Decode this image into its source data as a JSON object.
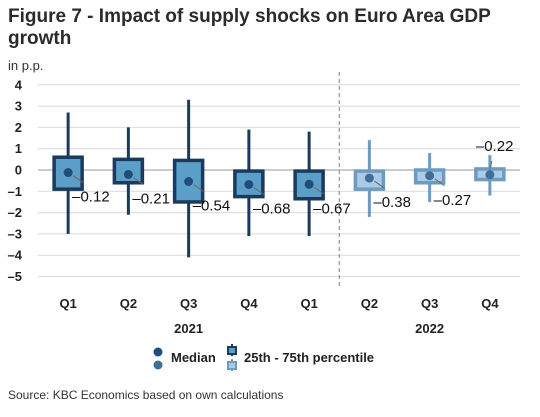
{
  "title": "Figure 7 - Impact of supply shocks on Euro Area GDP growth",
  "unit_label": "in p.p.",
  "source": "Source: KBC Economics based on own calculations",
  "colors": {
    "dark_line": "#1b3a5c",
    "dark_fill": "#5b9fc8",
    "light_line": "#6f9bc0",
    "light_fill": "#a8cbe6",
    "median_dark": "#1f4e79",
    "median_light": "#3f6f99",
    "grid": "#d9d9d9",
    "divider": "#808080"
  },
  "chart_data": {
    "type": "boxplot",
    "title": "Figure 7 - Impact of supply shocks on Euro Area GDP growth",
    "ylabel": "in p.p.",
    "ylim": [
      -5.4,
      4.3
    ],
    "yticks": [
      4,
      3,
      2,
      1,
      0,
      -1,
      -2,
      -3,
      -4,
      -5
    ],
    "grid": true,
    "legend": {
      "position": "bottom",
      "entries": [
        "Median",
        "25th - 75th percentile"
      ]
    },
    "categories": [
      "Q1",
      "Q2",
      "Q3",
      "Q4",
      "Q1",
      "Q2",
      "Q3",
      "Q4"
    ],
    "years": [
      {
        "label": "2021",
        "start": 0,
        "end": 4
      },
      {
        "label": "2022",
        "start": 5,
        "end": 7
      }
    ],
    "divider_after": 4,
    "series": [
      {
        "period": "2021 Q1",
        "median": -0.12,
        "q1": -0.9,
        "q3": 0.6,
        "min": -3.0,
        "max": 2.7,
        "label": "-0.12",
        "style": "dark"
      },
      {
        "period": "2021 Q2",
        "median": -0.21,
        "q1": -0.6,
        "q3": 0.5,
        "min": -2.1,
        "max": 2.0,
        "label": "-0.21",
        "style": "dark"
      },
      {
        "period": "2021 Q3",
        "median": -0.54,
        "q1": -1.5,
        "q3": 0.45,
        "min": -4.1,
        "max": 3.3,
        "label": "-0.54",
        "style": "dark"
      },
      {
        "period": "2021 Q4",
        "median": -0.68,
        "q1": -1.25,
        "q3": -0.05,
        "min": -3.1,
        "max": 1.9,
        "label": "-0.68",
        "style": "dark"
      },
      {
        "period": "2021 Q1b",
        "median": -0.67,
        "q1": -1.35,
        "q3": -0.05,
        "min": -3.1,
        "max": 1.8,
        "label": "-0.67",
        "style": "dark"
      },
      {
        "period": "2022 Q2",
        "median": -0.38,
        "q1": -0.9,
        "q3": -0.05,
        "min": -2.2,
        "max": 1.4,
        "label": "-0.38",
        "style": "light"
      },
      {
        "period": "2022 Q3",
        "median": -0.27,
        "q1": -0.6,
        "q3": 0.0,
        "min": -1.5,
        "max": 0.8,
        "label": "-0.27",
        "style": "light"
      },
      {
        "period": "2022 Q4",
        "median": -0.22,
        "q1": -0.45,
        "q3": 0.05,
        "min": -1.2,
        "max": 0.7,
        "label": "-0.22",
        "style": "light"
      }
    ]
  }
}
